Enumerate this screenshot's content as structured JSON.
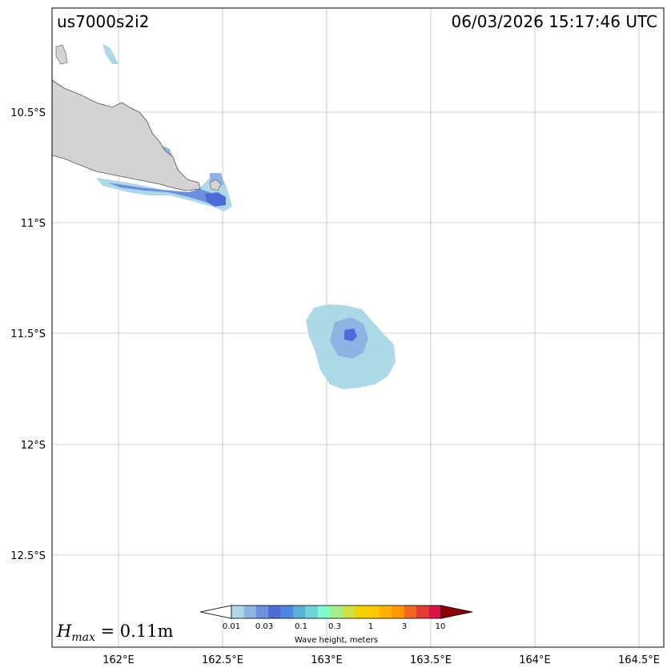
{
  "header": {
    "event_id": "us7000s2i2",
    "timestamp": "06/03/2026 15:17:46 UTC"
  },
  "axes": {
    "lon_labels": [
      "162°E",
      "162.5°E",
      "163°E",
      "163.5°E",
      "164°E",
      "164.5°E"
    ],
    "lat_labels": [
      "10.5°S",
      "11°S",
      "11.5°S",
      "12°S",
      "12.5°S"
    ]
  },
  "hmax": {
    "prefix": "H",
    "subscript": "max",
    "value_text": " = 0.11m"
  },
  "colorbar": {
    "label": "Wave height, meters",
    "tick_labels": [
      "0.01",
      "0.03",
      "0.1",
      "0.3",
      "1",
      "3",
      "10"
    ],
    "colors": [
      "#add8e6",
      "#8db4e2",
      "#6d90de",
      "#4d6cda",
      "#4f86e0",
      "#5bb0d8",
      "#6dd6d4",
      "#7ffccf",
      "#a6ee8a",
      "#cde044",
      "#f4d200",
      "#ffc800",
      "#ffb000",
      "#ff9800",
      "#f06820",
      "#e03c34",
      "#d81445"
    ],
    "under_color": "#ffffff",
    "over_color": "#8b0000"
  },
  "map": {
    "ocean_color": "#ffffff",
    "land_color": "#d3d3d3",
    "coast_color": "#555555",
    "grid_color": "#c0c0c0",
    "wave_colors": {
      "low": "#add8e6",
      "mid": "#8db4e2",
      "high": "#6d90de",
      "peak": "#4d6cda"
    }
  }
}
